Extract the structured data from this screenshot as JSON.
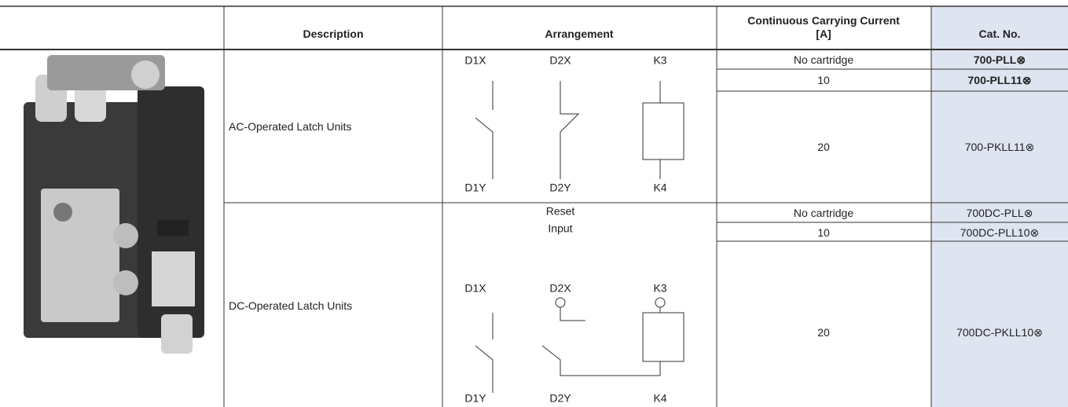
{
  "table": {
    "header": [
      "Description",
      "Arrangement",
      [
        "Continuous Carrying Current",
        "[A]"
      ],
      "Cat. No."
    ],
    "rows": [
      {
        "description": "AC-Operated Latch Units",
        "arrangement": {
          "top": [
            "D1X",
            "D2X",
            "K3"
          ],
          "bottom": [
            "D1Y",
            "D2Y",
            "K4"
          ]
        },
        "variants": [
          {
            "current": "No cartridge",
            "cat_no": "700-PLL⊗"
          },
          {
            "current": 10,
            "cat_no": "700-PLL11⊗"
          },
          {
            "current": 20,
            "cat_no": "700-PKLL11⊗"
          }
        ]
      },
      {
        "description": "DC-Operated Latch Units",
        "arrangement": {
          "reset_label": [
            "Reset",
            "Input"
          ],
          "top": [
            "D1X",
            "D2X",
            "K3"
          ],
          "bottom": [
            "D1Y",
            "D2Y",
            "K4"
          ]
        },
        "variants": [
          {
            "current": "No cartridge",
            "cat_no": "700DC-PLL⊗"
          },
          {
            "current": 10,
            "cat_no": "700DC-PLL10⊗"
          },
          {
            "current": 20,
            "cat_no": "700DC-PKLL10⊗"
          }
        ]
      }
    ]
  }
}
